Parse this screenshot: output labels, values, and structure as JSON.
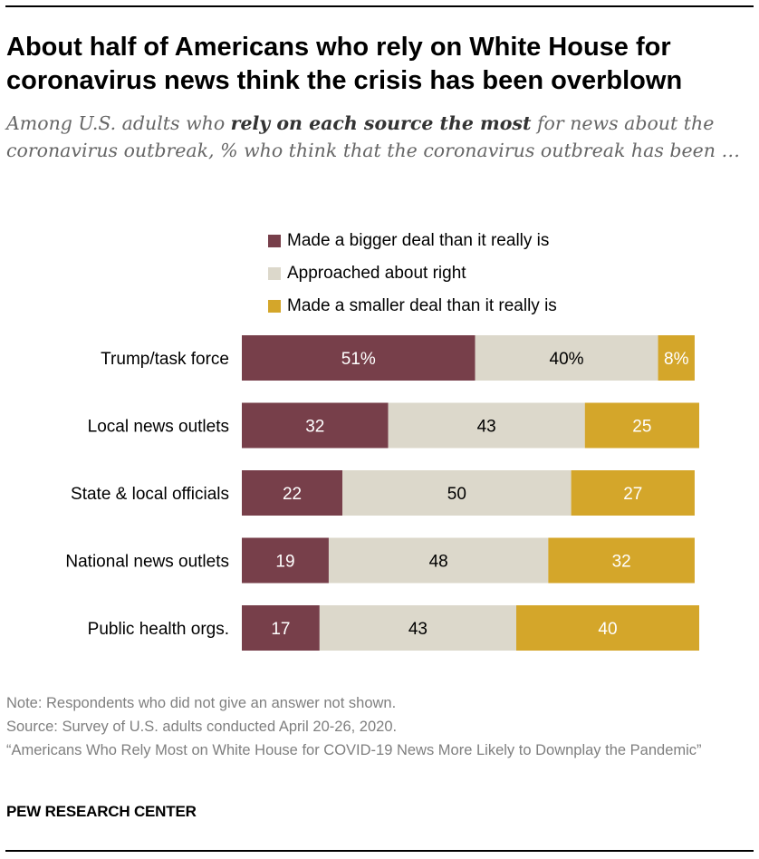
{
  "title": "About half of Americans who rely on White House for coronavirus news think the crisis has been overblown",
  "subtitle": {
    "pre": "Among U.S. adults who ",
    "bold": "rely on each source the most",
    "post": " for news about the coronavirus outbreak, % who think that the coronavirus outbreak has been …"
  },
  "colors": {
    "bigger": "#773f4a",
    "right": "#dcd8cb",
    "smaller": "#d4a62a"
  },
  "chart_data": {
    "type": "bar",
    "orientation": "horizontal-stacked",
    "categories": [
      "Trump/task force",
      "Local news outlets",
      "State & local officials",
      "National news outlets",
      "Public health orgs."
    ],
    "series": [
      {
        "name": "Made a bigger deal than it really is",
        "key": "bigger",
        "values": [
          51,
          32,
          22,
          19,
          17
        ],
        "labels": [
          "51%",
          "32",
          "22",
          "19",
          "17"
        ]
      },
      {
        "name": "Approached about right",
        "key": "right",
        "values": [
          40,
          43,
          50,
          48,
          43
        ],
        "labels": [
          "40%",
          "43",
          "50",
          "48",
          "43"
        ]
      },
      {
        "name": "Made a smaller deal than it really is",
        "key": "smaller",
        "values": [
          8,
          25,
          27,
          32,
          40
        ],
        "labels": [
          "8%",
          "25",
          "27",
          "32",
          "40"
        ]
      }
    ],
    "xlim": [
      0,
      100
    ]
  },
  "notes": {
    "note": "Note: Respondents who did not give an answer not shown.",
    "source": "Source: Survey of U.S. adults conducted April 20-26, 2020.",
    "report": "“Americans Who Rely Most on White House for COVID-19 News More Likely to Downplay the Pandemic”"
  },
  "brand": "PEW RESEARCH CENTER"
}
